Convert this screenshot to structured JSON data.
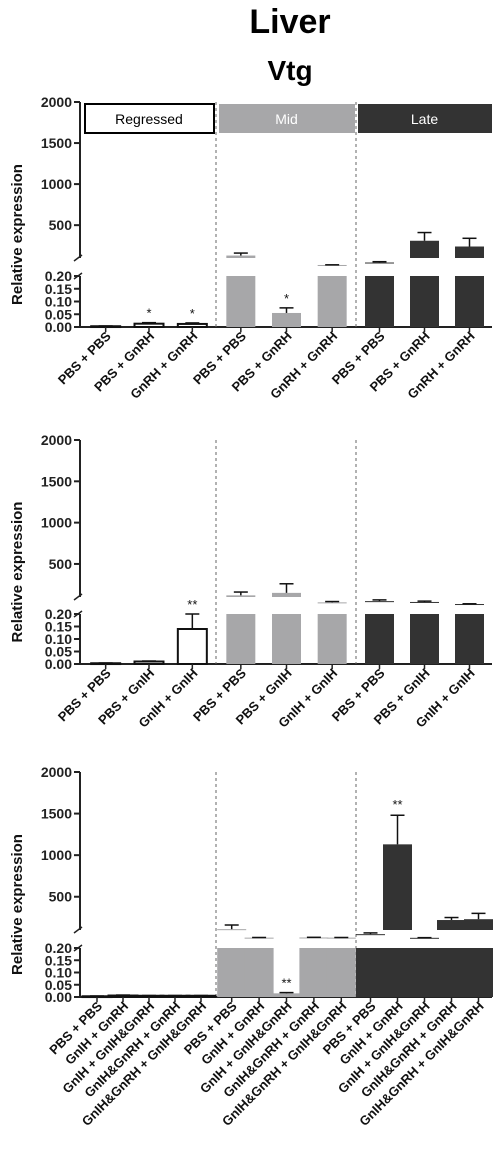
{
  "title": "Liver",
  "subtitle": "Vtg",
  "colors": {
    "regressed": "#ffffff",
    "mid": "#a7a7a9",
    "late": "#333333",
    "axis": "#222222"
  },
  "chart_data": [
    {
      "type": "bar",
      "ylabel": "Relative expression",
      "y_axis": {
        "upper_ticks": [
          500,
          1000,
          1500,
          2000
        ],
        "lower_ticks": [
          0.0,
          0.05,
          0.1,
          0.15,
          0.2
        ],
        "upper_range": [
          100,
          2000
        ],
        "lower_range": [
          0,
          0.2
        ]
      },
      "stages": [
        "Regressed",
        "Mid",
        "Late"
      ],
      "groups": [
        {
          "stage": "Regressed",
          "categories": [
            "PBS + PBS",
            "PBS + GnRH",
            "GnRH + GnRH"
          ],
          "values": [
            0.003,
            0.013,
            0.012
          ],
          "errors": [
            0.001,
            0.004,
            0.004
          ],
          "annotations": [
            "",
            "*",
            "*"
          ]
        },
        {
          "stage": "Mid",
          "categories": [
            "PBS + PBS",
            "PBS + GnRH",
            "GnRH + GnRH"
          ],
          "values": [
            130,
            0.055,
            15
          ],
          "errors": [
            30,
            0.02,
            2
          ],
          "annotations": [
            "",
            "*",
            ""
          ]
        },
        {
          "stage": "Late",
          "categories": [
            "PBS + PBS",
            "PBS + GnRH",
            "GnRH + GnRH"
          ],
          "values": [
            45,
            310,
            240
          ],
          "errors": [
            10,
            100,
            100
          ],
          "annotations": [
            "",
            "",
            ""
          ]
        }
      ]
    },
    {
      "type": "bar",
      "ylabel": "Relative expression",
      "y_axis": {
        "upper_ticks": [
          500,
          1000,
          1500,
          2000
        ],
        "lower_ticks": [
          0.0,
          0.05,
          0.1,
          0.15,
          0.2
        ],
        "upper_range": [
          100,
          2000
        ],
        "lower_range": [
          0,
          0.2
        ]
      },
      "stages": [],
      "groups": [
        {
          "stage": "Regressed",
          "categories": [
            "PBS + PBS",
            "PBS + GnIH",
            "GnIH + GnIH"
          ],
          "values": [
            0.003,
            0.01,
            0.14
          ],
          "errors": [
            0.001,
            0.002,
            0.06
          ],
          "annotations": [
            "",
            "",
            "**"
          ]
        },
        {
          "stage": "Mid",
          "categories": [
            "PBS + PBS",
            "PBS + GnIH",
            "GnIH + GnIH"
          ],
          "values": [
            120,
            150,
            35
          ],
          "errors": [
            40,
            110,
            10
          ],
          "annotations": [
            "",
            "",
            ""
          ]
        },
        {
          "stage": "Late",
          "categories": [
            "PBS + PBS",
            "PBS + GnIH",
            "GnIH + GnIH"
          ],
          "values": [
            50,
            40,
            15
          ],
          "errors": [
            15,
            10,
            3
          ],
          "annotations": [
            "",
            "",
            ""
          ]
        }
      ]
    },
    {
      "type": "bar",
      "ylabel": "Relative expression",
      "y_axis": {
        "upper_ticks": [
          500,
          1000,
          1500,
          2000
        ],
        "lower_ticks": [
          0.0,
          0.05,
          0.1,
          0.15,
          0.2
        ],
        "upper_range": [
          100,
          2000
        ],
        "lower_range": [
          0,
          0.2
        ]
      },
      "stages": [],
      "groups": [
        {
          "stage": "Regressed",
          "categories": [
            "PBS + PBS",
            "GnIH + GnRH",
            "GnIH + GnIH&GnRH",
            "GnIH&GnRH + GnRH",
            "GnIH&GnRH + GnIH&GnRH"
          ],
          "values": [
            0.003,
            0.006,
            0.005,
            0.005,
            0.005
          ],
          "errors": [
            0.001,
            0.002,
            0.001,
            0.001,
            0.001
          ],
          "annotations": [
            "",
            "",
            "",
            "",
            ""
          ]
        },
        {
          "stage": "Mid",
          "categories": [
            "PBS + PBS",
            "GnIH + GnRH",
            "GnIH + GnIH&GnRH",
            "GnIH&GnRH + GnRH",
            "GnIH&GnRH + GnIH&GnRH"
          ],
          "values": [
            110,
            8,
            0.015,
            10,
            8
          ],
          "errors": [
            50,
            2,
            0.003,
            2,
            2
          ],
          "annotations": [
            "",
            "",
            "**",
            "",
            ""
          ]
        },
        {
          "stage": "Late",
          "categories": [
            "PBS + PBS",
            "GnIH + GnRH",
            "GnIH + GnIH&GnRH",
            "GnIH&GnRH + GnRH",
            "GnIH&GnRH + GnIH&GnRH"
          ],
          "values": [
            50,
            1130,
            6,
            220,
            230
          ],
          "errors": [
            15,
            350,
            2,
            30,
            70
          ],
          "annotations": [
            "",
            "**",
            "",
            "",
            ""
          ]
        }
      ]
    }
  ]
}
